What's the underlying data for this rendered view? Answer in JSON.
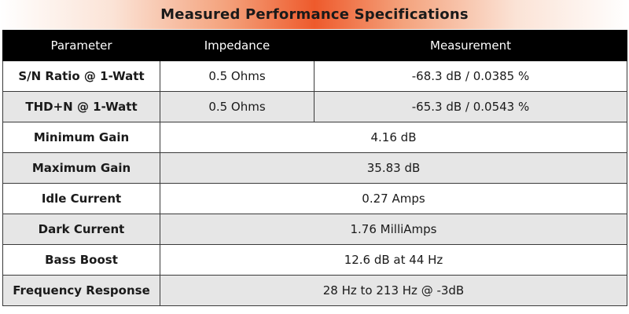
{
  "title": "Measured Performance Specifications",
  "headers": {
    "parameter": "Parameter",
    "impedance": "Impedance",
    "measurement": "Measurement"
  },
  "rows": [
    {
      "parameter": "S/N Ratio @ 1-Watt",
      "impedance": "0.5 Ohms",
      "measurement": "-68.3 dB / 0.0385 %"
    },
    {
      "parameter": "THD+N @ 1-Watt",
      "impedance": "0.5 Ohms",
      "measurement": "-65.3 dB / 0.0543 %"
    },
    {
      "parameter": "Minimum Gain",
      "value": "4.16 dB"
    },
    {
      "parameter": "Maximum Gain",
      "value": "35.83 dB"
    },
    {
      "parameter": "Idle Current",
      "value": "0.27 Amps"
    },
    {
      "parameter": "Dark Current",
      "value": "1.76 MilliAmps"
    },
    {
      "parameter": "Bass Boost",
      "value": "12.6 dB at 44 Hz"
    },
    {
      "parameter": "Frequency Response",
      "value": "28 Hz to 213 Hz @ -3dB"
    }
  ],
  "colors": {
    "header_background": "#000000",
    "header_text": "#ffffff",
    "title_accent": "#ee5a2c",
    "row_shade": "#e6e6e6"
  }
}
